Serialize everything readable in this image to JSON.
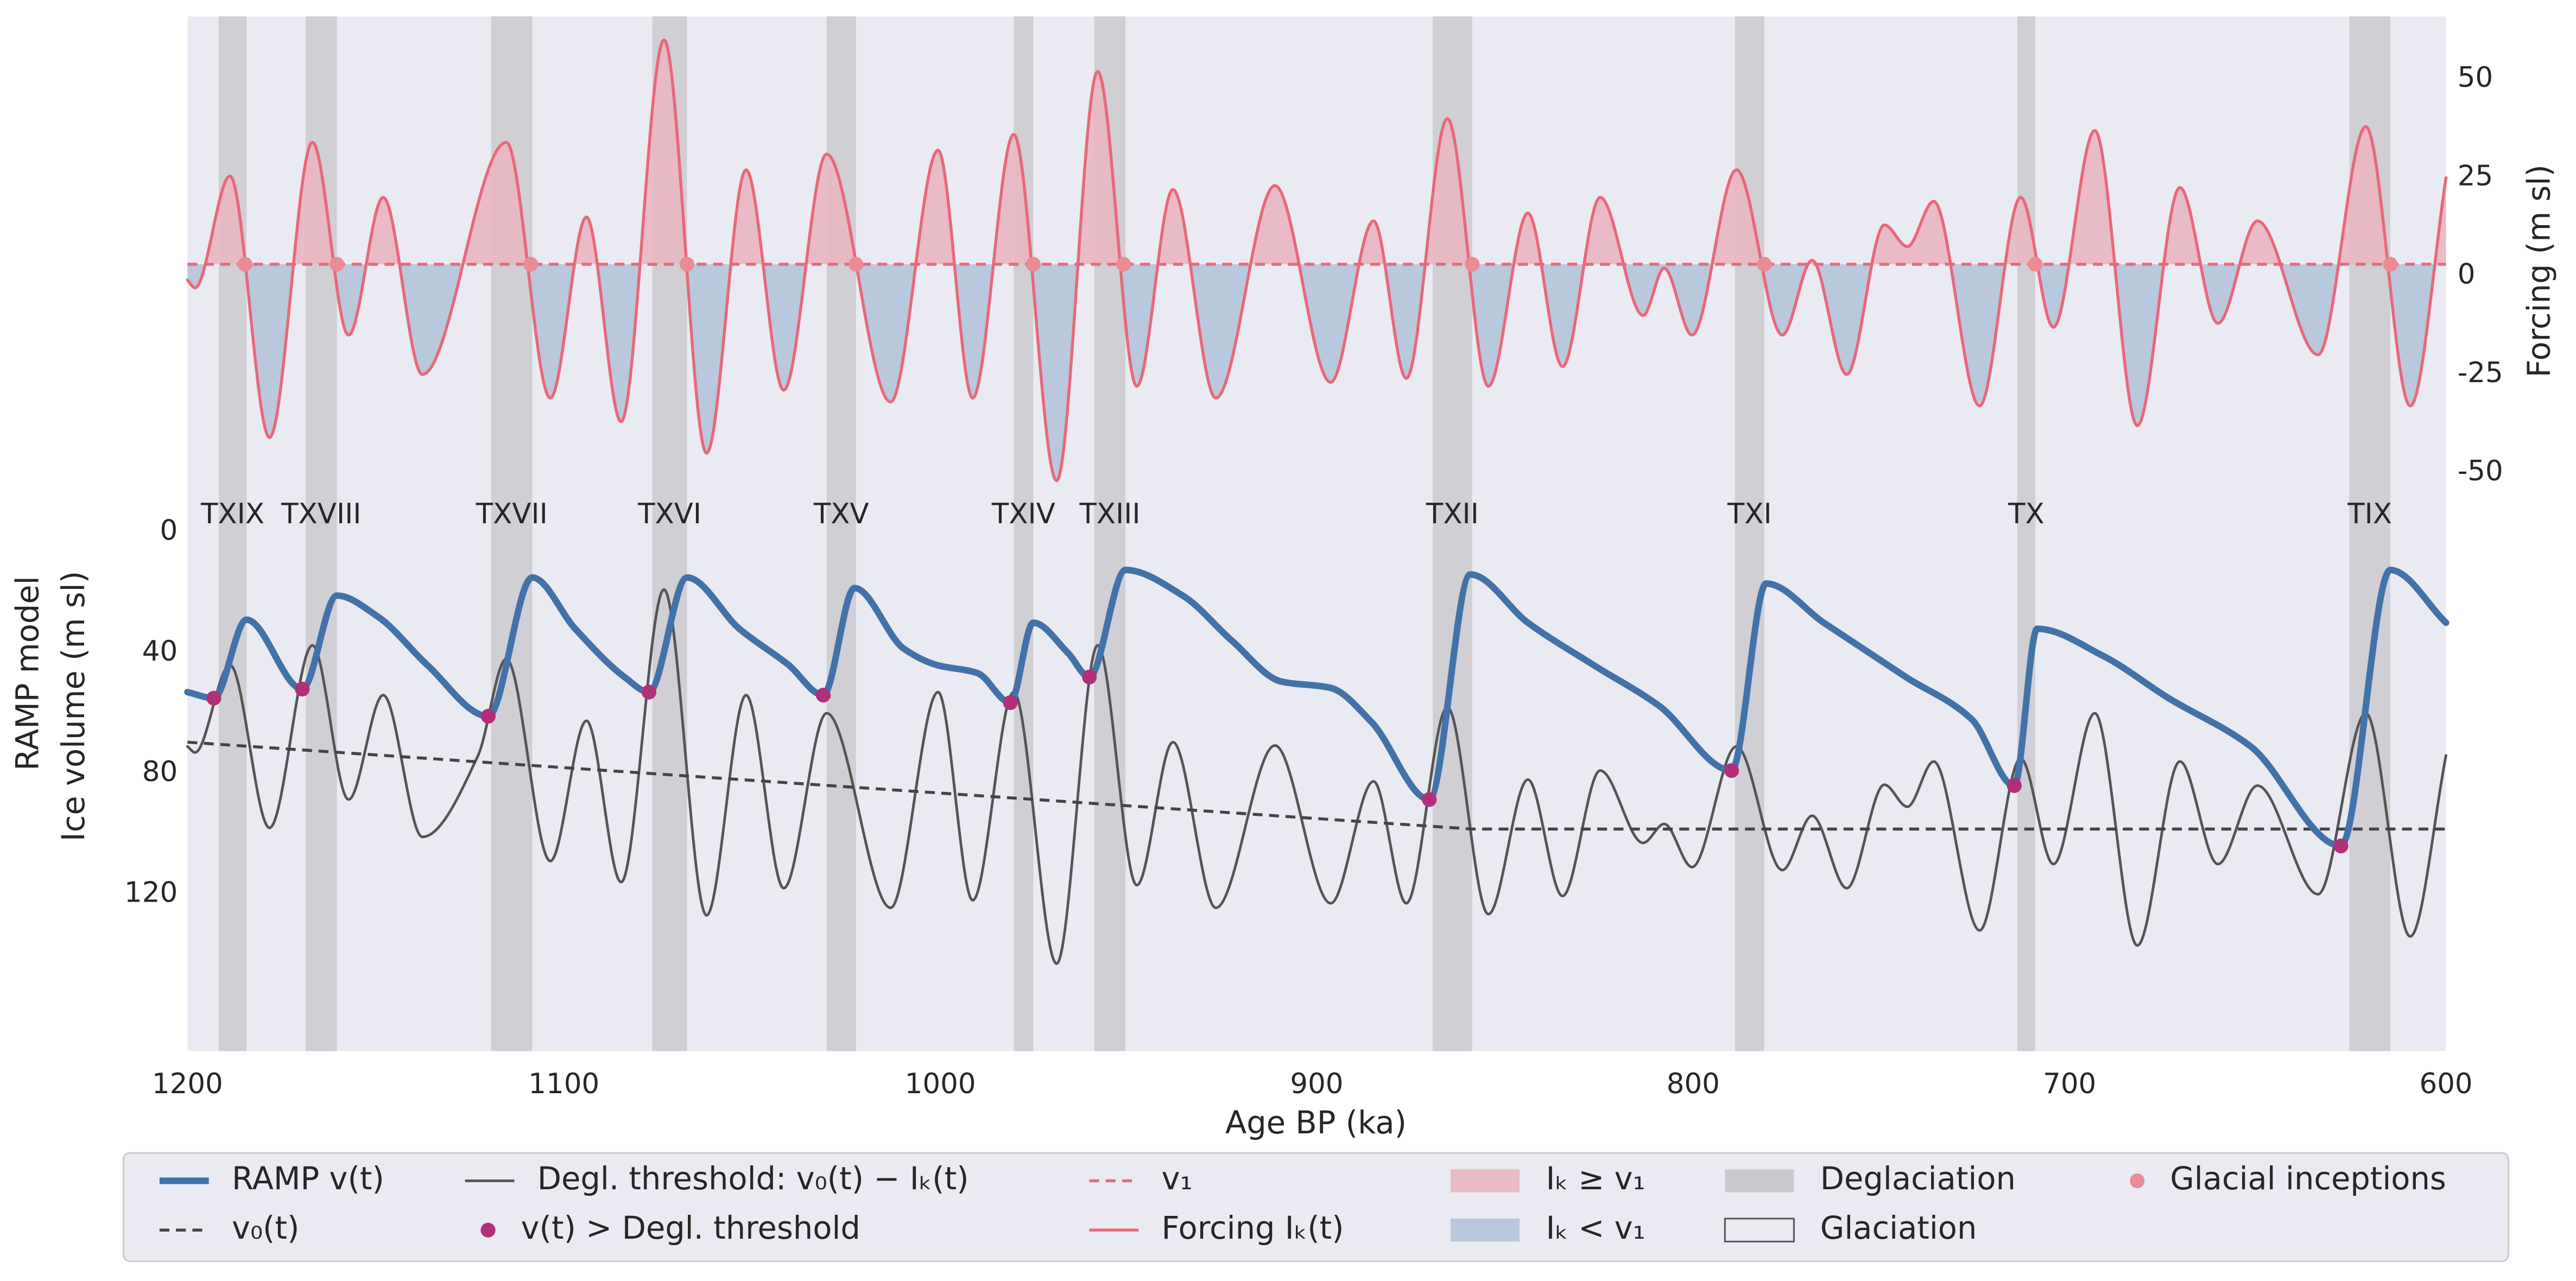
{
  "chart_data": {
    "type": "line",
    "xlabel": "Age BP (ka)",
    "ylabel": "Ice volume (m sl)",
    "ylabel_model": "RAMP model",
    "ylabel_model_color": "#4272a8",
    "y2label": "Forcing (m sl)",
    "xlim": [
      1200,
      600
    ],
    "xticks": [
      1200,
      1100,
      1000,
      900,
      800,
      700,
      600
    ],
    "ylim": [
      172,
      -171
    ],
    "yticks": [
      0,
      40,
      80,
      120
    ],
    "y2lim": [
      -197,
      66
    ],
    "y2ticks": [
      -50,
      -25,
      0,
      25,
      50
    ],
    "grid": false,
    "legend": "bottom",
    "background": {
      "name": "Glaciation",
      "color": "#eaeaf2"
    },
    "bands": {
      "name": "Deglaciation",
      "color": "#c6c6ca",
      "items": [
        {
          "label": "TXIX",
          "start": 1191.7,
          "end": 1184.3
        },
        {
          "label": "TXVIII",
          "start": 1168.6,
          "end": 1160.3
        },
        {
          "label": "TXVII",
          "start": 1119.3,
          "end": 1108.4
        },
        {
          "label": "TXVI",
          "start": 1076.5,
          "end": 1067.3
        },
        {
          "label": "TXV",
          "start": 1030.2,
          "end": 1022.4
        },
        {
          "label": "TXIV",
          "start": 980.5,
          "end": 975.3
        },
        {
          "label": "TXIII",
          "start": 959.1,
          "end": 950.8
        },
        {
          "label": "TXII",
          "start": 869.2,
          "end": 858.7
        },
        {
          "label": "TXI",
          "start": 788.9,
          "end": 781.1
        },
        {
          "label": "TX",
          "start": 713.9,
          "end": 709.1
        },
        {
          "label": "TIX",
          "start": 625.7,
          "end": 614.8
        }
      ]
    },
    "series": [
      {
        "name": "RAMP v(t)",
        "color": "#4272a8",
        "style": "line",
        "width": 4,
        "x": [
          1200,
          1193,
          1184.3,
          1169.5,
          1160.3,
          1149.4,
          1136.3,
          1120.1,
          1108.4,
          1097,
          1083.9,
          1077.4,
          1067.3,
          1053.4,
          1040.3,
          1031.1,
          1022.8,
          1009.7,
          1001,
          990.1,
          981.4,
          975.3,
          966.1,
          960.4,
          950.8,
          935.6,
          922.5,
          909.4,
          896.3,
          885.4,
          870.1,
          859.2,
          843.9,
          826.5,
          809,
          789.8,
          780.6,
          765.3,
          743.5,
          726,
          714.7,
          708.6,
          691.1,
          673.7,
          651.9,
          627.9,
          614.8,
          600
        ],
        "values": [
          53,
          55,
          29,
          52,
          21,
          28,
          44,
          61,
          15,
          32,
          48,
          53,
          15,
          32,
          44,
          54,
          18.5,
          38.6,
          44,
          46.7,
          56.5,
          30,
          40,
          48,
          12.5,
          21,
          36,
          49.5,
          51.6,
          63,
          88.6,
          14,
          30,
          44,
          57.6,
          79,
          17,
          30,
          48,
          62,
          84,
          32,
          41,
          55,
          71,
          104,
          12.5,
          30
        ]
      },
      {
        "name": "v₀(t)",
        "color": "#444444",
        "style": "dashed",
        "width": 1.8,
        "x": [
          1200,
          858.7,
          600
        ],
        "values": [
          69.6,
          98.4,
          98.4
        ]
      },
      {
        "name": "Degl. threshold: v₀(t) − Iₖ(t)",
        "color": "#555555",
        "style": "line",
        "width": 1.6,
        "x": [
          1200,
          1198,
          1188.7,
          1178.2,
          1166.8,
          1157.2,
          1148,
          1137.6,
          1122.8,
          1115.3,
          1103.6,
          1094,
          1084.8,
          1073.4,
          1062.1,
          1051.6,
          1041.6,
          1030.2,
          1013.2,
          1000.6,
          991.4,
          980.5,
          969.1,
          958.2,
          947.8,
          938.2,
          926.8,
          911.1,
          896.3,
          884.9,
          876.2,
          865.3,
          854.4,
          843.9,
          834.7,
          824.7,
          813.3,
          807.7,
          800.3,
          788.5,
          776.3,
          768.4,
          759.2,
          749.2,
          743.1,
          736.1,
          723.9,
          713,
          704.3,
          693.3,
          682,
          670.7,
          660.6,
          650.1,
          634,
          621.3,
          609.5,
          600
        ],
        "values": [
          71,
          73,
          44,
          98,
          37.5,
          88.6,
          54,
          101,
          74,
          42,
          109,
          62.5,
          116,
          19,
          127,
          54,
          118,
          60,
          124.5,
          53,
          122,
          53,
          143,
          37.5,
          117,
          69.6,
          124.5,
          70.7,
          123,
          82.6,
          123,
          58,
          126.6,
          82,
          120.6,
          79,
          103,
          96.7,
          111,
          71,
          112,
          94,
          118,
          83.7,
          91,
          76,
          132,
          75,
          110,
          60,
          137,
          76,
          110,
          84,
          120,
          60,
          134,
          74
        ]
      },
      {
        "name": "v(t) > Degl. threshold",
        "color": "#b0307a",
        "style": "points",
        "x": [
          1193,
          1169.5,
          1120.1,
          1077.4,
          1031.1,
          981.4,
          960.4,
          870.1,
          789.8,
          714.7,
          627.9
        ],
        "values": [
          55,
          52,
          61,
          53,
          54,
          56.5,
          48,
          88.6,
          79,
          84,
          104
        ]
      },
      {
        "name": "v₁",
        "color": "#e8687a",
        "style": "dashed",
        "width": 1.8,
        "axis": "y2",
        "x": [
          1200,
          600
        ],
        "values": [
          3,
          3
        ]
      },
      {
        "name": "Forcing Iₖ(t)",
        "color": "#e8687a",
        "style": "line",
        "width": 1.8,
        "axis": "y2",
        "fill_above": {
          "name": "Iₖ ≥  v₁",
          "color": "#e9b6c1"
        },
        "fill_below": {
          "name": "Iₖ < v₁",
          "color": "#b5c4da"
        },
        "x": [
          1200,
          1198,
          1188.7,
          1178.2,
          1166.8,
          1157.2,
          1148,
          1137.6,
          1115.3,
          1103.6,
          1094,
          1084.8,
          1073.4,
          1062.1,
          1051.6,
          1041.6,
          1030.2,
          1013.2,
          1000.6,
          991.4,
          980.5,
          969.1,
          958.2,
          947.8,
          938.2,
          926.8,
          911.1,
          896.3,
          884.9,
          876.2,
          865.3,
          854.4,
          843.9,
          834.7,
          824.7,
          813.3,
          807.7,
          800.3,
          788.5,
          776.3,
          768.4,
          759.2,
          749.2,
          743.1,
          736.1,
          723.9,
          713,
          704.3,
          693.3,
          682,
          670.7,
          660.6,
          650.1,
          634,
          621.3,
          609.5,
          600
        ],
        "values": [
          -1,
          -3,
          25.4,
          -41,
          34,
          -15,
          20,
          -25,
          34,
          -31,
          15,
          -37,
          60,
          -45,
          27,
          -29,
          31,
          -32,
          32,
          -31,
          36,
          -52,
          52,
          -28,
          22,
          -31,
          23,
          -27,
          14,
          -26,
          40,
          -28,
          16,
          -23,
          20,
          -10,
          2,
          -15,
          27,
          -15,
          4,
          -25,
          13,
          7.5,
          19,
          -33,
          20,
          -13,
          37,
          -38,
          22.5,
          -12,
          14,
          -20,
          38,
          -33,
          25
        ]
      },
      {
        "name": "Glacial inceptions",
        "color": "#ea8c95",
        "style": "points",
        "axis": "y2",
        "x": [
          1184.7,
          1160.3,
          1108.8,
          1067.3,
          1022.4,
          975.3,
          951.3,
          858.7,
          781.1,
          709.1,
          614.8
        ],
        "values": [
          3,
          3,
          3,
          3,
          3,
          3,
          3,
          3,
          3,
          3,
          3
        ]
      }
    ]
  }
}
